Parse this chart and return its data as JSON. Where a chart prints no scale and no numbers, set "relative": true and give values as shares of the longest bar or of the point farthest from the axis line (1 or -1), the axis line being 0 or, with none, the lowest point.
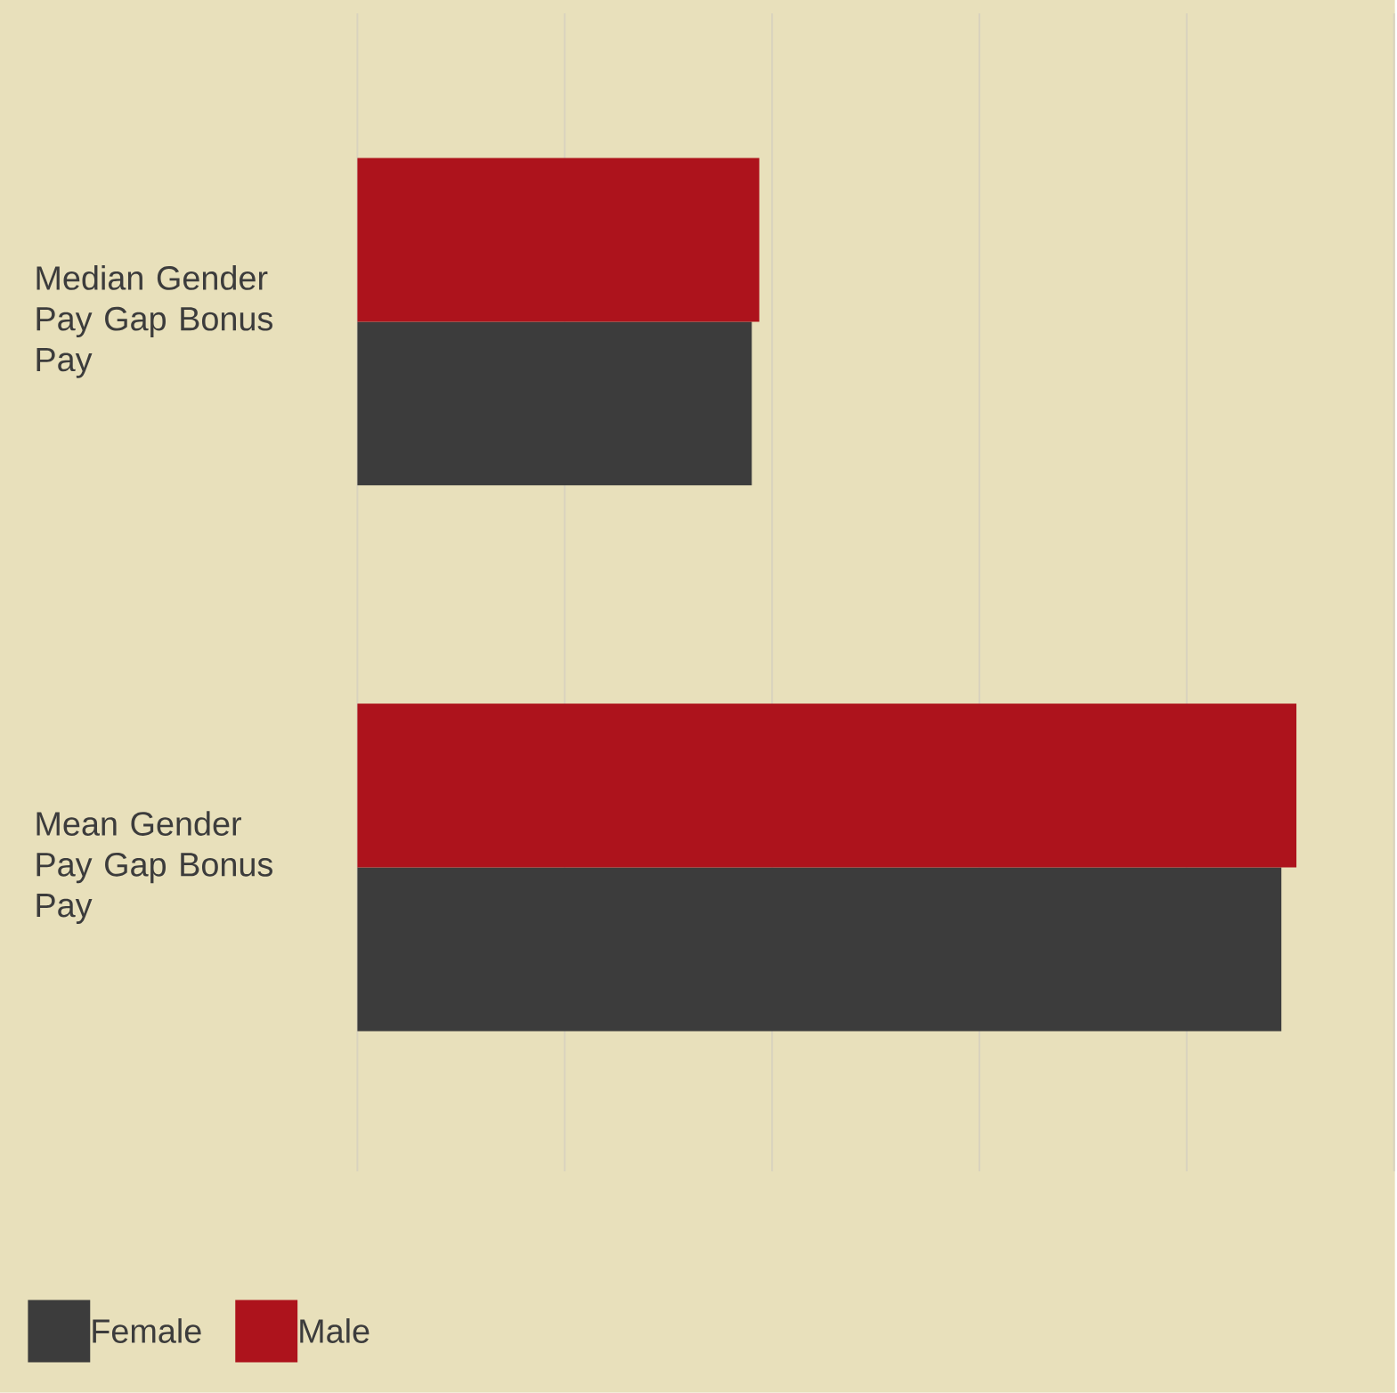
{
  "chart_data": {
    "type": "bar",
    "orientation": "horizontal",
    "relative": true,
    "categories": [
      "Median Gender Pay Gap Bonus Pay",
      "Mean Gender Pay Gap Bonus Pay"
    ],
    "series": [
      {
        "name": "Female",
        "color": "#3c3c3c",
        "values": [
          0.42,
          0.984
        ]
      },
      {
        "name": "Male",
        "color": "#ad131c",
        "values": [
          0.428,
          1
        ]
      }
    ],
    "grid": "x",
    "legend": "bottom left"
  }
}
